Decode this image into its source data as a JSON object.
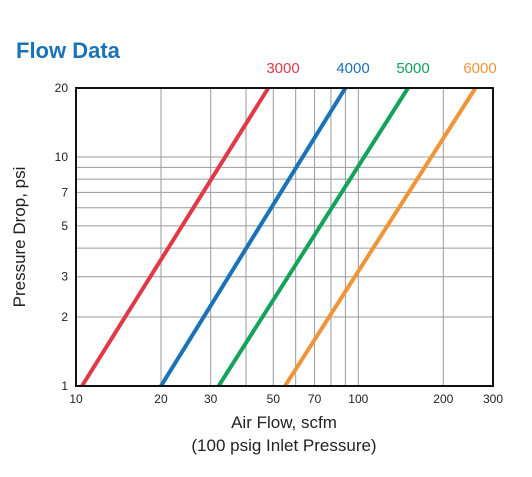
{
  "chart_data": {
    "type": "line",
    "title": "Flow Data",
    "xlabel": "Air Flow, scfm",
    "xlabel_sub": "(100 psig Inlet Pressure)",
    "ylabel": "Pressure Drop, psi",
    "x_scale": "log",
    "y_scale": "log",
    "xlim": [
      10,
      300
    ],
    "ylim": [
      1,
      20
    ],
    "x_ticks": [
      10,
      20,
      30,
      50,
      70,
      100,
      200,
      300
    ],
    "y_ticks": [
      1,
      2,
      3,
      5,
      7,
      10,
      20
    ],
    "grid": true,
    "legend_position": "top",
    "series": [
      {
        "name": "3000",
        "color": "#e03a48",
        "x": [
          10.5,
          48
        ],
        "y": [
          1,
          20
        ]
      },
      {
        "name": "4000",
        "color": "#1a73b8",
        "x": [
          20,
          90
        ],
        "y": [
          1,
          20
        ]
      },
      {
        "name": "5000",
        "color": "#13a35c",
        "x": [
          32,
          150
        ],
        "y": [
          1,
          20
        ]
      },
      {
        "name": "6000",
        "color": "#f0943a",
        "x": [
          55,
          260
        ],
        "y": [
          1,
          20
        ]
      }
    ]
  },
  "colors": {
    "title": "#1a73b8",
    "grid": "#9a9a9a",
    "frame": "#111111"
  }
}
